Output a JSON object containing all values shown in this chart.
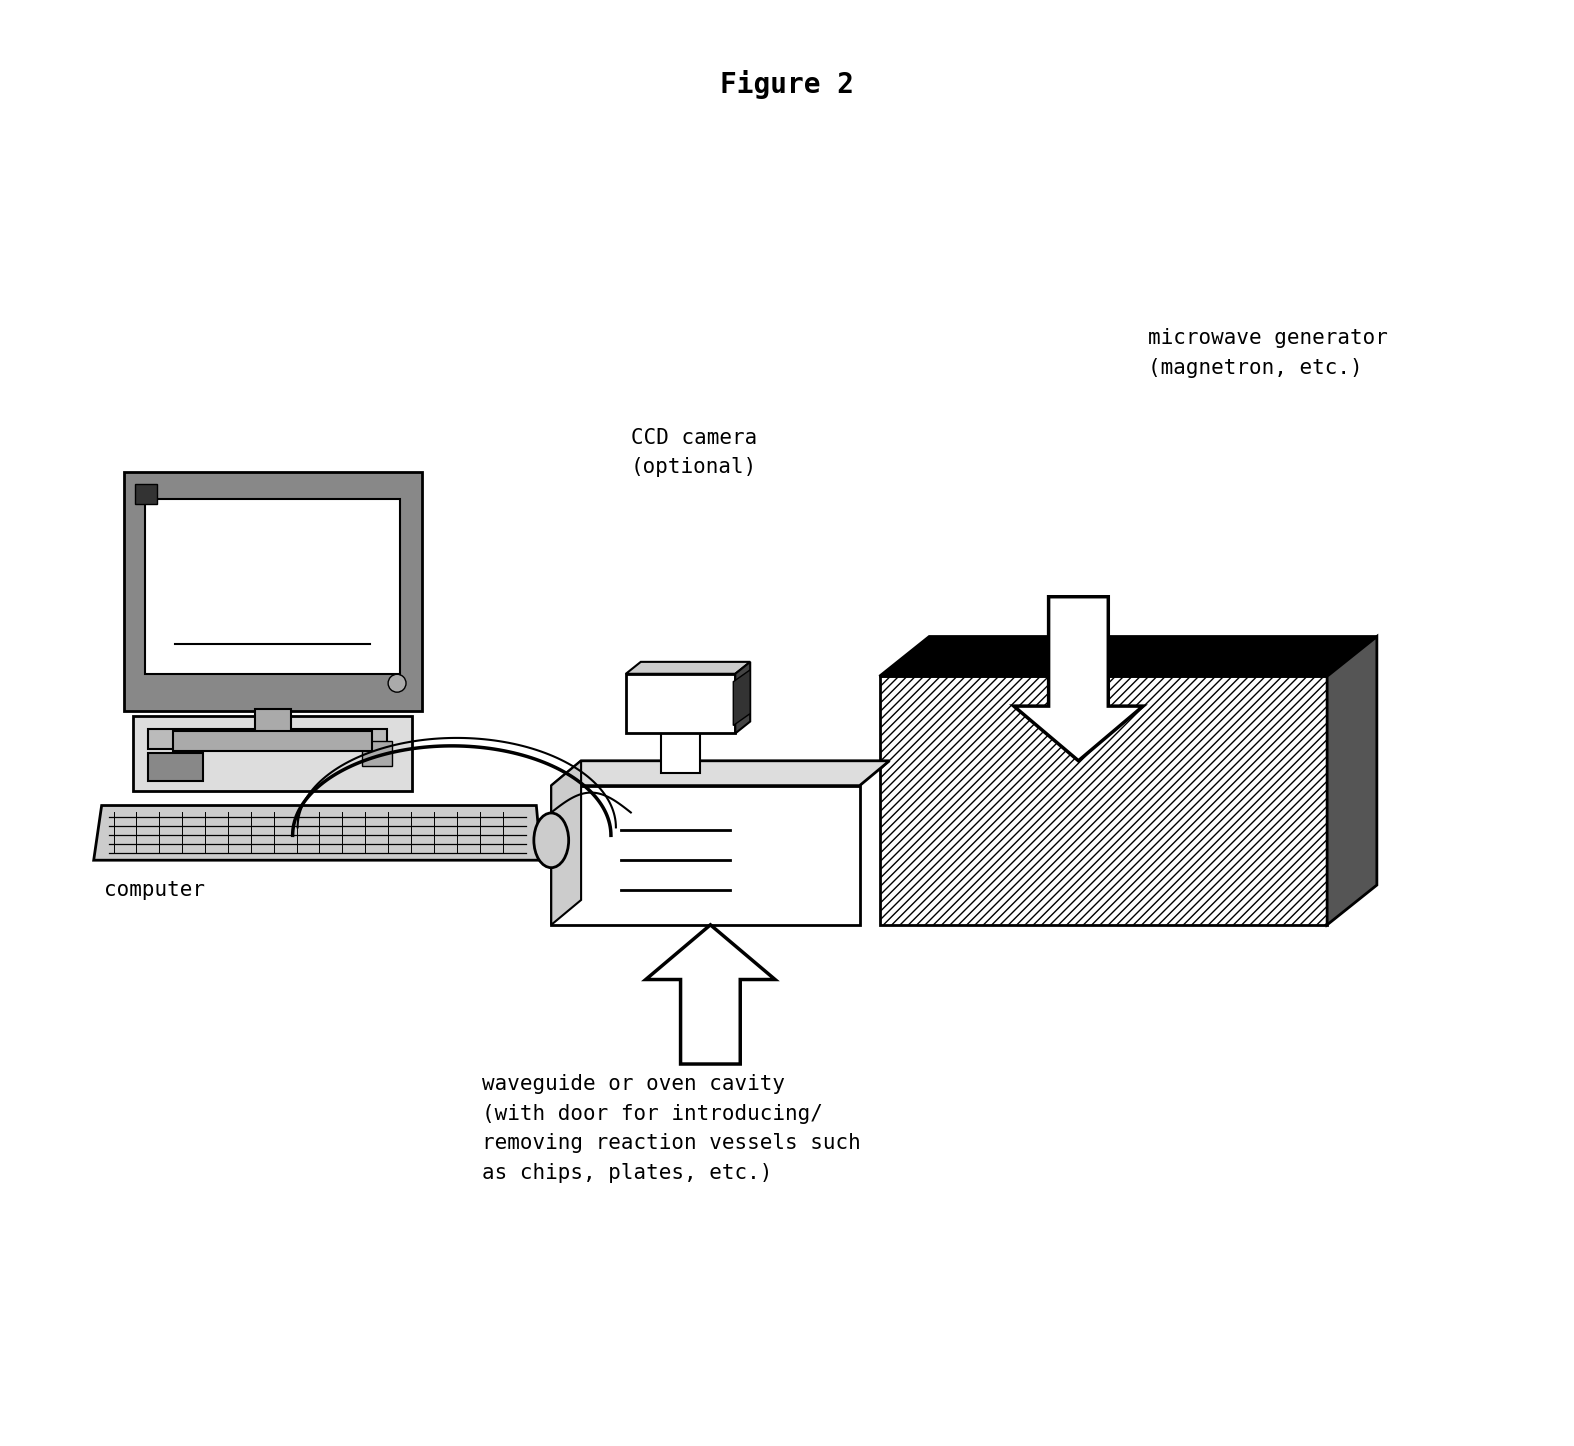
{
  "title": "Figure 2",
  "title_fontsize": 20,
  "title_fontweight": "bold",
  "title_family": "monospace",
  "background_color": "#ffffff",
  "label_microwave": "microwave generator\n(magnetron, etc.)",
  "label_camera": "CCD camera\n(optional)",
  "label_computer": "computer",
  "label_waveguide": "waveguide or oven cavity\n(with door for introducing/\nremoving reaction vessels such\nas chips, plates, etc.)",
  "text_fontsize": 15,
  "text_family": "monospace"
}
